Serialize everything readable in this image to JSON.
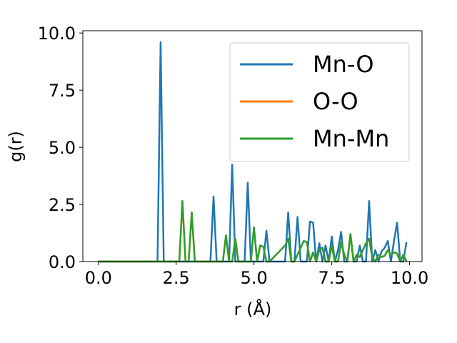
{
  "chart_data": {
    "type": "line",
    "xlabel": "r (Å)",
    "ylabel": "g(r)",
    "xlim": [
      -0.5,
      10.4
    ],
    "ylim": [
      0,
      10.1
    ],
    "xticks": [
      "0.0",
      "2.5",
      "5.0",
      "7.5",
      "10.0"
    ],
    "xtick_values": [
      0,
      2.5,
      5,
      7.5,
      10
    ],
    "yticks": [
      "0.0",
      "2.5",
      "5.0",
      "7.5",
      "10.0"
    ],
    "ytick_values": [
      0,
      2.5,
      5,
      7.5,
      10
    ],
    "grid": false,
    "legend_position": "upper right",
    "series": [
      {
        "name": "Mn-O",
        "color": "#1f77b4",
        "x": [
          0,
          1.9,
          2.0,
          2.1,
          2.2,
          3.6,
          3.7,
          3.8,
          4.2,
          4.3,
          4.4,
          4.7,
          4.8,
          4.9,
          5.3,
          5.4,
          5.5,
          6.0,
          6.1,
          6.2,
          6.3,
          6.4,
          6.5,
          6.7,
          6.8,
          6.9,
          7.0,
          7.1,
          7.2,
          7.3,
          7.4,
          7.5,
          7.6,
          7.7,
          7.8,
          7.9,
          8.0,
          8.1,
          8.2,
          8.3,
          8.4,
          8.5,
          8.6,
          8.7,
          8.8,
          8.9,
          9.0,
          9.1,
          9.2,
          9.3,
          9.4,
          9.5,
          9.6,
          9.7,
          9.8,
          9.9
        ],
        "y": [
          0,
          0,
          9.6,
          0,
          0,
          0,
          2.85,
          0,
          0,
          4.25,
          0,
          0,
          3.45,
          0,
          0,
          1.35,
          0,
          0,
          2.15,
          0,
          0,
          1.95,
          0,
          0,
          1.75,
          1.7,
          0,
          0.8,
          0,
          0.7,
          0,
          1.1,
          0,
          0.5,
          1.3,
          0,
          0,
          1.2,
          0,
          0,
          0.7,
          0,
          0,
          2.65,
          0,
          0.5,
          0,
          0.45,
          0.6,
          0.9,
          0,
          0.9,
          1.7,
          0,
          0,
          0.85
        ]
      },
      {
        "name": "O-O",
        "color": "#ff7f0e",
        "x": [
          0,
          2.6,
          2.7,
          2.8,
          2.9,
          3.0,
          3.1,
          4.0,
          4.1,
          4.2,
          4.3,
          4.4,
          4.5,
          4.9,
          5.0,
          5.1,
          5.2,
          5.3,
          5.4,
          5.5,
          6.0,
          6.1,
          6.2,
          6.3,
          6.6,
          6.7,
          6.8,
          6.9,
          7.0,
          7.1,
          7.2,
          7.3,
          7.4,
          7.5,
          7.6,
          7.7,
          7.8,
          7.9,
          8.0,
          8.1,
          8.2,
          8.3,
          8.4,
          8.5,
          8.6,
          8.7,
          8.8,
          8.9,
          9.0,
          9.1,
          9.2,
          9.3,
          9.4,
          9.5,
          9.6,
          9.7,
          9.8,
          9.9
        ],
        "y": [
          0,
          0,
          2.65,
          0,
          0,
          2.15,
          0,
          0,
          1.15,
          0,
          0,
          1.0,
          0,
          0,
          1.5,
          0,
          0.7,
          0.65,
          0,
          0,
          0.7,
          1.0,
          0,
          0,
          0.9,
          0.85,
          0,
          0.4,
          0,
          0.5,
          0.6,
          0,
          0,
          0.7,
          0,
          0,
          0.85,
          0.3,
          0,
          1.2,
          0,
          0.3,
          0.2,
          0.5,
          0.8,
          1.0,
          0.2,
          0,
          0.3,
          0.2,
          0.25,
          0.5,
          0.3,
          0.4,
          0.35,
          0,
          0.3,
          0
        ]
      },
      {
        "name": "Mn-Mn",
        "color": "#2ca02c",
        "x": [
          0,
          2.6,
          2.7,
          2.8,
          2.9,
          3.0,
          3.1,
          4.0,
          4.1,
          4.2,
          4.3,
          4.4,
          4.5,
          4.9,
          5.0,
          5.1,
          5.2,
          5.3,
          5.4,
          5.5,
          6.0,
          6.1,
          6.2,
          6.3,
          6.6,
          6.7,
          6.8,
          6.9,
          7.0,
          7.1,
          7.2,
          7.3,
          7.4,
          7.5,
          7.6,
          7.7,
          7.8,
          7.9,
          8.0,
          8.1,
          8.2,
          8.3,
          8.4,
          8.5,
          8.6,
          8.7,
          8.8,
          8.9,
          9.0,
          9.1,
          9.2,
          9.3,
          9.4,
          9.5,
          9.6,
          9.7,
          9.8,
          9.9
        ],
        "y": [
          0,
          0,
          2.65,
          0,
          0,
          2.15,
          0,
          0,
          1.15,
          0,
          0,
          1.0,
          0,
          0,
          1.5,
          0,
          0.7,
          0.65,
          0,
          0,
          0.7,
          1.0,
          0,
          0,
          0.9,
          0.85,
          0,
          0.4,
          0,
          0.5,
          0.6,
          0,
          0,
          0.7,
          0,
          0,
          0.85,
          0.3,
          0,
          1.2,
          0,
          0.3,
          0.2,
          0.5,
          0.8,
          1.0,
          0.2,
          0,
          0.3,
          0.2,
          0.25,
          0.5,
          0.3,
          0.4,
          0.35,
          0,
          0.3,
          0
        ]
      }
    ]
  }
}
